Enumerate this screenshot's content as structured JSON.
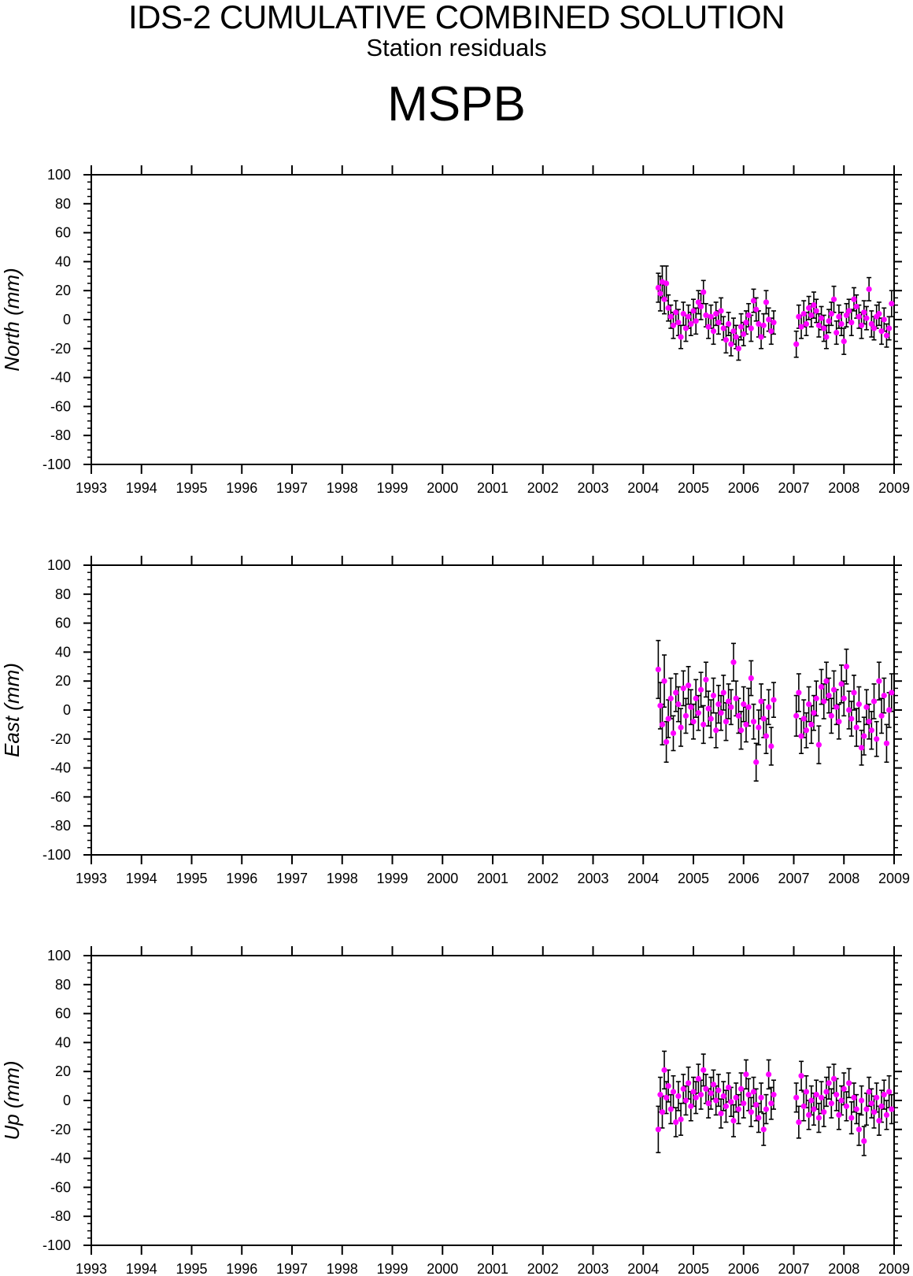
{
  "title": "IDS-2 CUMULATIVE COMBINED SOLUTION",
  "subtitle": "Station residuals",
  "station": "MSPB",
  "colors": {
    "point": "#ff00ff",
    "errorbar": "#000000",
    "axis": "#000000"
  },
  "chart_data": [
    {
      "type": "scatter",
      "component": "north",
      "ylabel": "North (mm)",
      "ylim": [
        -100,
        100
      ],
      "xlim": [
        1993,
        2009
      ],
      "yticks": [
        100,
        80,
        60,
        40,
        20,
        0,
        -20,
        -40,
        -60,
        -80,
        -100
      ],
      "xticks": [
        1993,
        1994,
        1995,
        1996,
        1997,
        1998,
        1999,
        2000,
        2001,
        2002,
        2003,
        2004,
        2005,
        2006,
        2007,
        2008,
        2009
      ],
      "error_bars": true,
      "points": [
        [
          2004.3,
          22,
          10
        ],
        [
          2004.34,
          18,
          12
        ],
        [
          2004.38,
          26,
          11
        ],
        [
          2004.42,
          14,
          10
        ],
        [
          2004.46,
          25,
          12
        ],
        [
          2004.5,
          8,
          9
        ],
        [
          2004.55,
          2,
          8
        ],
        [
          2004.6,
          -4,
          9
        ],
        [
          2004.65,
          5,
          8
        ],
        [
          2004.7,
          -2,
          9
        ],
        [
          2004.75,
          -12,
          8
        ],
        [
          2004.8,
          4,
          8
        ],
        [
          2004.85,
          -6,
          9
        ],
        [
          2004.9,
          2,
          8
        ],
        [
          2004.95,
          -3,
          8
        ],
        [
          2005.0,
          6,
          8
        ],
        [
          2005.05,
          -1,
          9
        ],
        [
          2005.1,
          12,
          8
        ],
        [
          2005.15,
          9,
          9
        ],
        [
          2005.2,
          19,
          8
        ],
        [
          2005.25,
          3,
          8
        ],
        [
          2005.3,
          -5,
          8
        ],
        [
          2005.35,
          2,
          8
        ],
        [
          2005.4,
          -8,
          9
        ],
        [
          2005.45,
          4,
          8
        ],
        [
          2005.5,
          -2,
          8
        ],
        [
          2005.55,
          6,
          9
        ],
        [
          2005.6,
          -6,
          8
        ],
        [
          2005.65,
          -14,
          9
        ],
        [
          2005.7,
          -3,
          8
        ],
        [
          2005.75,
          -17,
          8
        ],
        [
          2005.8,
          -8,
          9
        ],
        [
          2005.85,
          -12,
          8
        ],
        [
          2005.9,
          -20,
          8
        ],
        [
          2005.95,
          -5,
          9
        ],
        [
          2006.0,
          -10,
          8
        ],
        [
          2006.05,
          -2,
          8
        ],
        [
          2006.1,
          3,
          8
        ],
        [
          2006.15,
          -6,
          9
        ],
        [
          2006.2,
          13,
          8
        ],
        [
          2006.25,
          7,
          8
        ],
        [
          2006.3,
          -3,
          9
        ],
        [
          2006.35,
          -12,
          8
        ],
        [
          2006.4,
          -4,
          8
        ],
        [
          2006.45,
          12,
          8
        ],
        [
          2006.5,
          0,
          8
        ],
        [
          2006.55,
          -8,
          9
        ],
        [
          2006.6,
          -2,
          8
        ],
        [
          2007.05,
          -17,
          9
        ],
        [
          2007.1,
          2,
          8
        ],
        [
          2007.15,
          -5,
          8
        ],
        [
          2007.2,
          4,
          9
        ],
        [
          2007.25,
          -3,
          8
        ],
        [
          2007.3,
          8,
          8
        ],
        [
          2007.35,
          3,
          8
        ],
        [
          2007.4,
          10,
          9
        ],
        [
          2007.45,
          6,
          8
        ],
        [
          2007.5,
          -4,
          8
        ],
        [
          2007.55,
          1,
          8
        ],
        [
          2007.6,
          -6,
          9
        ],
        [
          2007.65,
          -12,
          8
        ],
        [
          2007.7,
          -1,
          8
        ],
        [
          2007.75,
          4,
          8
        ],
        [
          2007.8,
          14,
          9
        ],
        [
          2007.85,
          -9,
          8
        ],
        [
          2007.9,
          2,
          8
        ],
        [
          2007.95,
          -3,
          8
        ],
        [
          2008.0,
          -15,
          9
        ],
        [
          2008.05,
          3,
          8
        ],
        [
          2008.1,
          6,
          8
        ],
        [
          2008.15,
          -2,
          9
        ],
        [
          2008.2,
          14,
          8
        ],
        [
          2008.25,
          9,
          8
        ],
        [
          2008.3,
          2,
          8
        ],
        [
          2008.35,
          -4,
          9
        ],
        [
          2008.4,
          5,
          8
        ],
        [
          2008.45,
          1,
          8
        ],
        [
          2008.5,
          21,
          8
        ],
        [
          2008.55,
          -3,
          9
        ],
        [
          2008.6,
          -6,
          8
        ],
        [
          2008.65,
          2,
          8
        ],
        [
          2008.7,
          4,
          8
        ],
        [
          2008.75,
          -8,
          9
        ],
        [
          2008.8,
          0,
          8
        ],
        [
          2008.85,
          -11,
          8
        ],
        [
          2008.9,
          -6,
          8
        ],
        [
          2008.95,
          11,
          9
        ]
      ]
    },
    {
      "type": "scatter",
      "component": "east",
      "ylabel": "East (mm)",
      "ylim": [
        -100,
        100
      ],
      "xlim": [
        1993,
        2009
      ],
      "yticks": [
        100,
        80,
        60,
        40,
        20,
        0,
        -20,
        -40,
        -60,
        -80,
        -100
      ],
      "xticks": [
        1993,
        1994,
        1995,
        1996,
        1997,
        1998,
        1999,
        2000,
        2001,
        2002,
        2003,
        2004,
        2005,
        2006,
        2007,
        2008,
        2009
      ],
      "error_bars": true,
      "points": [
        [
          2004.3,
          28,
          20
        ],
        [
          2004.34,
          3,
          16
        ],
        [
          2004.38,
          -10,
          14
        ],
        [
          2004.42,
          20,
          18
        ],
        [
          2004.46,
          -22,
          14
        ],
        [
          2004.5,
          -6,
          13
        ],
        [
          2004.55,
          8,
          14
        ],
        [
          2004.6,
          -16,
          12
        ],
        [
          2004.65,
          12,
          13
        ],
        [
          2004.7,
          4,
          12
        ],
        [
          2004.75,
          -12,
          13
        ],
        [
          2004.8,
          15,
          12
        ],
        [
          2004.85,
          -4,
          12
        ],
        [
          2004.9,
          17,
          13
        ],
        [
          2004.95,
          2,
          12
        ],
        [
          2005.0,
          -8,
          12
        ],
        [
          2005.05,
          8,
          13
        ],
        [
          2005.1,
          -2,
          12
        ],
        [
          2005.15,
          14,
          12
        ],
        [
          2005.2,
          -10,
          13
        ],
        [
          2005.25,
          21,
          12
        ],
        [
          2005.3,
          1,
          12
        ],
        [
          2005.35,
          -6,
          13
        ],
        [
          2005.4,
          10,
          12
        ],
        [
          2005.45,
          -14,
          12
        ],
        [
          2005.5,
          4,
          13
        ],
        [
          2005.55,
          -2,
          12
        ],
        [
          2005.6,
          12,
          12
        ],
        [
          2005.65,
          -8,
          13
        ],
        [
          2005.7,
          6,
          12
        ],
        [
          2005.75,
          2,
          12
        ],
        [
          2005.8,
          33,
          13
        ],
        [
          2005.85,
          8,
          12
        ],
        [
          2005.9,
          -4,
          12
        ],
        [
          2005.95,
          -14,
          13
        ],
        [
          2006.0,
          4,
          12
        ],
        [
          2006.05,
          -10,
          12
        ],
        [
          2006.1,
          2,
          13
        ],
        [
          2006.15,
          22,
          12
        ],
        [
          2006.2,
          -8,
          12
        ],
        [
          2006.25,
          -36,
          13
        ],
        [
          2006.3,
          -12,
          12
        ],
        [
          2006.35,
          6,
          12
        ],
        [
          2006.4,
          -6,
          13
        ],
        [
          2006.45,
          -18,
          12
        ],
        [
          2006.5,
          2,
          12
        ],
        [
          2006.55,
          -25,
          13
        ],
        [
          2006.6,
          7,
          12
        ],
        [
          2007.05,
          -4,
          14
        ],
        [
          2007.1,
          12,
          13
        ],
        [
          2007.15,
          -18,
          12
        ],
        [
          2007.2,
          -6,
          13
        ],
        [
          2007.25,
          -14,
          12
        ],
        [
          2007.3,
          4,
          12
        ],
        [
          2007.35,
          -10,
          13
        ],
        [
          2007.4,
          -2,
          12
        ],
        [
          2007.45,
          8,
          12
        ],
        [
          2007.5,
          -24,
          13
        ],
        [
          2007.55,
          16,
          12
        ],
        [
          2007.6,
          6,
          12
        ],
        [
          2007.65,
          20,
          13
        ],
        [
          2007.7,
          10,
          12
        ],
        [
          2007.75,
          -4,
          12
        ],
        [
          2007.8,
          14,
          13
        ],
        [
          2007.85,
          2,
          12
        ],
        [
          2007.9,
          -8,
          12
        ],
        [
          2007.95,
          18,
          13
        ],
        [
          2008.0,
          8,
          12
        ],
        [
          2008.05,
          30,
          12
        ],
        [
          2008.1,
          0,
          13
        ],
        [
          2008.15,
          -6,
          12
        ],
        [
          2008.2,
          12,
          12
        ],
        [
          2008.25,
          -12,
          13
        ],
        [
          2008.3,
          4,
          12
        ],
        [
          2008.35,
          -26,
          12
        ],
        [
          2008.4,
          -18,
          13
        ],
        [
          2008.45,
          2,
          12
        ],
        [
          2008.5,
          -8,
          12
        ],
        [
          2008.55,
          -14,
          13
        ],
        [
          2008.6,
          6,
          12
        ],
        [
          2008.65,
          -20,
          12
        ],
        [
          2008.7,
          20,
          13
        ],
        [
          2008.75,
          -4,
          12
        ],
        [
          2008.8,
          10,
          12
        ],
        [
          2008.85,
          -23,
          13
        ],
        [
          2008.9,
          0,
          12
        ],
        [
          2008.95,
          12,
          13
        ]
      ]
    },
    {
      "type": "scatter",
      "component": "up",
      "ylabel": "Up (mm)",
      "ylim": [
        -100,
        100
      ],
      "xlim": [
        1993,
        2009
      ],
      "yticks": [
        100,
        80,
        60,
        40,
        20,
        0,
        -20,
        -40,
        -60,
        -80,
        -100
      ],
      "xticks": [
        1993,
        1994,
        1995,
        1996,
        1997,
        1998,
        1999,
        2000,
        2001,
        2002,
        2003,
        2004,
        2005,
        2006,
        2007,
        2008,
        2009
      ],
      "error_bars": true,
      "points": [
        [
          2004.3,
          -20,
          16
        ],
        [
          2004.34,
          4,
          12
        ],
        [
          2004.38,
          -8,
          11
        ],
        [
          2004.42,
          21,
          13
        ],
        [
          2004.46,
          2,
          11
        ],
        [
          2004.5,
          10,
          11
        ],
        [
          2004.55,
          -6,
          10
        ],
        [
          2004.6,
          6,
          11
        ],
        [
          2004.65,
          -15,
          10
        ],
        [
          2004.7,
          3,
          10
        ],
        [
          2004.75,
          -13,
          11
        ],
        [
          2004.8,
          8,
          10
        ],
        [
          2004.85,
          0,
          10
        ],
        [
          2004.9,
          12,
          11
        ],
        [
          2004.95,
          -4,
          10
        ],
        [
          2005.0,
          6,
          10
        ],
        [
          2005.05,
          2,
          11
        ],
        [
          2005.1,
          15,
          10
        ],
        [
          2005.15,
          4,
          10
        ],
        [
          2005.2,
          21,
          11
        ],
        [
          2005.25,
          8,
          10
        ],
        [
          2005.3,
          -2,
          10
        ],
        [
          2005.35,
          5,
          11
        ],
        [
          2005.4,
          11,
          10
        ],
        [
          2005.45,
          0,
          10
        ],
        [
          2005.5,
          7,
          11
        ],
        [
          2005.55,
          -9,
          10
        ],
        [
          2005.6,
          3,
          10
        ],
        [
          2005.65,
          -4,
          11
        ],
        [
          2005.7,
          9,
          10
        ],
        [
          2005.75,
          -1,
          10
        ],
        [
          2005.8,
          -14,
          11
        ],
        [
          2005.85,
          2,
          10
        ],
        [
          2005.9,
          -6,
          10
        ],
        [
          2005.95,
          8,
          11
        ],
        [
          2006.0,
          -2,
          10
        ],
        [
          2006.05,
          18,
          10
        ],
        [
          2006.1,
          4,
          11
        ],
        [
          2006.15,
          -8,
          10
        ],
        [
          2006.2,
          6,
          10
        ],
        [
          2006.25,
          -3,
          11
        ],
        [
          2006.3,
          -12,
          10
        ],
        [
          2006.35,
          2,
          10
        ],
        [
          2006.4,
          -20,
          11
        ],
        [
          2006.45,
          -6,
          10
        ],
        [
          2006.5,
          18,
          10
        ],
        [
          2006.55,
          -2,
          11
        ],
        [
          2006.6,
          4,
          10
        ],
        [
          2007.05,
          2,
          10
        ],
        [
          2007.1,
          -15,
          11
        ],
        [
          2007.15,
          17,
          10
        ],
        [
          2007.2,
          -4,
          10
        ],
        [
          2007.25,
          6,
          11
        ],
        [
          2007.3,
          -10,
          10
        ],
        [
          2007.35,
          0,
          10
        ],
        [
          2007.4,
          -6,
          11
        ],
        [
          2007.45,
          4,
          10
        ],
        [
          2007.5,
          -12,
          10
        ],
        [
          2007.55,
          2,
          11
        ],
        [
          2007.6,
          -8,
          10
        ],
        [
          2007.65,
          6,
          10
        ],
        [
          2007.7,
          12,
          11
        ],
        [
          2007.75,
          -2,
          10
        ],
        [
          2007.8,
          15,
          10
        ],
        [
          2007.85,
          4,
          11
        ],
        [
          2007.9,
          -10,
          10
        ],
        [
          2007.95,
          0,
          10
        ],
        [
          2008.0,
          8,
          11
        ],
        [
          2008.05,
          -4,
          10
        ],
        [
          2008.1,
          12,
          10
        ],
        [
          2008.15,
          -12,
          11
        ],
        [
          2008.2,
          2,
          10
        ],
        [
          2008.25,
          -6,
          10
        ],
        [
          2008.3,
          -20,
          11
        ],
        [
          2008.35,
          0,
          10
        ],
        [
          2008.4,
          -28,
          10
        ],
        [
          2008.45,
          -6,
          11
        ],
        [
          2008.5,
          6,
          10
        ],
        [
          2008.55,
          -2,
          10
        ],
        [
          2008.6,
          -8,
          11
        ],
        [
          2008.65,
          2,
          10
        ],
        [
          2008.7,
          -14,
          10
        ],
        [
          2008.75,
          -4,
          11
        ],
        [
          2008.8,
          4,
          10
        ],
        [
          2008.85,
          -10,
          10
        ],
        [
          2008.9,
          6,
          11
        ],
        [
          2008.95,
          -6,
          10
        ]
      ]
    }
  ]
}
